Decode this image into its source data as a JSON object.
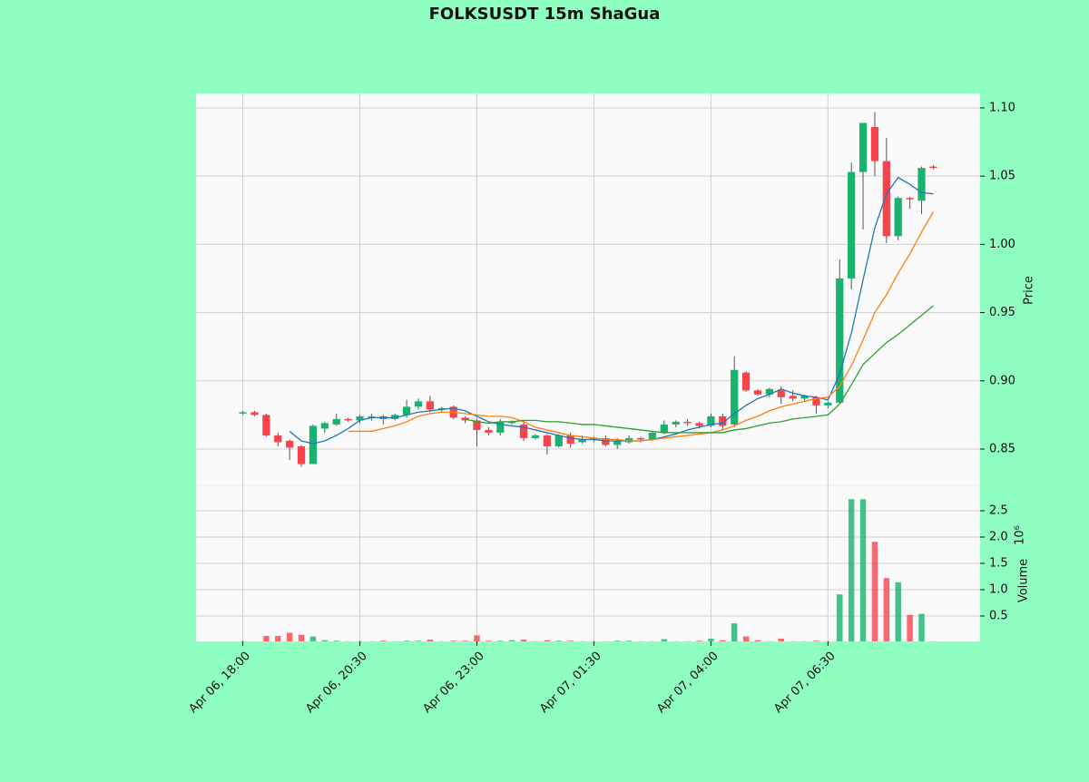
{
  "chart_data": {
    "type": "candlestick",
    "title": "FOLKSUSDT 15m ShaGua",
    "ylabel": "Price",
    "y2label": "Volume",
    "y2_offset_label": "10⁶",
    "categories": [
      "Apr 06, 18:00",
      null,
      null,
      null,
      null,
      null,
      null,
      null,
      null,
      null,
      "Apr 06, 20:30",
      null,
      null,
      null,
      null,
      null,
      null,
      null,
      null,
      null,
      "Apr 06, 23:00",
      null,
      null,
      null,
      null,
      null,
      null,
      null,
      null,
      null,
      "Apr 07, 01:30",
      null,
      null,
      null,
      null,
      null,
      null,
      null,
      null,
      null,
      "Apr 07, 04:00",
      null,
      null,
      null,
      null,
      null,
      null,
      null,
      null,
      null,
      "Apr 07, 06:30",
      null,
      null,
      null,
      null,
      null,
      null,
      null,
      null,
      null
    ],
    "open": [
      0.876,
      0.877,
      0.875,
      0.86,
      0.856,
      0.852,
      0.839,
      0.865,
      0.868,
      0.872,
      0.871,
      0.873,
      0.874,
      0.872,
      0.875,
      0.881,
      0.885,
      0.879,
      0.881,
      0.873,
      0.871,
      0.864,
      0.862,
      0.869,
      0.868,
      0.858,
      0.86,
      0.852,
      0.86,
      0.855,
      0.857,
      0.858,
      0.853,
      0.855,
      0.858,
      0.857,
      0.862,
      0.868,
      0.87,
      0.869,
      0.867,
      0.874,
      0.868,
      0.906,
      0.893,
      0.89,
      0.893,
      0.889,
      0.887,
      0.888,
      0.882,
      0.884,
      0.975,
      1.053,
      1.086,
      1.061,
      1.006,
      1.034,
      1.032,
      1.057
    ],
    "high": [
      0.878,
      0.878,
      0.876,
      0.862,
      0.857,
      0.853,
      0.868,
      0.87,
      0.876,
      0.873,
      0.875,
      0.876,
      0.875,
      0.876,
      0.886,
      0.887,
      0.889,
      0.881,
      0.882,
      0.874,
      0.872,
      0.866,
      0.872,
      0.871,
      0.871,
      0.861,
      0.861,
      0.861,
      0.862,
      0.86,
      0.859,
      0.86,
      0.858,
      0.86,
      0.859,
      0.863,
      0.871,
      0.871,
      0.872,
      0.87,
      0.876,
      0.876,
      0.918,
      0.907,
      0.894,
      0.895,
      0.896,
      0.893,
      0.89,
      0.889,
      0.885,
      0.989,
      1.06,
      1.089,
      1.097,
      1.078,
      1.035,
      1.035,
      1.057,
      1.058
    ],
    "low": [
      0.875,
      0.874,
      0.859,
      0.852,
      0.842,
      0.837,
      0.839,
      0.862,
      0.867,
      0.87,
      0.869,
      0.871,
      0.868,
      0.871,
      0.873,
      0.879,
      0.877,
      0.877,
      0.872,
      0.869,
      0.852,
      0.86,
      0.86,
      0.868,
      0.856,
      0.857,
      0.846,
      0.851,
      0.851,
      0.854,
      0.855,
      0.852,
      0.85,
      0.854,
      0.855,
      0.856,
      0.861,
      0.866,
      0.867,
      0.865,
      0.866,
      0.864,
      0.866,
      0.892,
      0.889,
      0.888,
      0.883,
      0.885,
      0.885,
      0.876,
      0.88,
      0.883,
      0.967,
      1.011,
      1.05,
      1.001,
      1.003,
      1.026,
      1.022,
      1.055
    ],
    "close": [
      0.877,
      0.875,
      0.86,
      0.855,
      0.851,
      0.839,
      0.867,
      0.869,
      0.872,
      0.871,
      0.874,
      0.874,
      0.872,
      0.875,
      0.881,
      0.885,
      0.879,
      0.88,
      0.873,
      0.871,
      0.864,
      0.862,
      0.87,
      0.87,
      0.858,
      0.86,
      0.852,
      0.86,
      0.854,
      0.857,
      0.858,
      0.853,
      0.856,
      0.858,
      0.857,
      0.862,
      0.868,
      0.87,
      0.869,
      0.867,
      0.874,
      0.867,
      0.908,
      0.893,
      0.89,
      0.894,
      0.888,
      0.887,
      0.889,
      0.882,
      0.884,
      0.975,
      1.053,
      1.089,
      1.061,
      1.006,
      1.034,
      1.033,
      1.056,
      1.056
    ],
    "volume": [
      0.02,
      0.01,
      0.12,
      0.12,
      0.18,
      0.14,
      0.11,
      0.04,
      0.03,
      0.02,
      0.02,
      0.02,
      0.03,
      0.02,
      0.03,
      0.03,
      0.05,
      0.02,
      0.03,
      0.03,
      0.13,
      0.03,
      0.03,
      0.04,
      0.05,
      0.02,
      0.04,
      0.03,
      0.03,
      0.02,
      0.02,
      0.02,
      0.03,
      0.03,
      0.02,
      0.02,
      0.06,
      0.02,
      0.02,
      0.03,
      0.07,
      0.04,
      0.36,
      0.11,
      0.04,
      0.02,
      0.07,
      0.02,
      0.02,
      0.03,
      0.02,
      0.91,
      2.72,
      2.72,
      1.91,
      1.22,
      1.14,
      0.52,
      0.54,
      0.02
    ],
    "up_color": "#18b46f",
    "down_color": "#f7434b",
    "series": [
      {
        "color": "#1f77b4",
        "values": [
          null,
          null,
          null,
          null,
          0.863,
          0.856,
          0.854,
          0.856,
          0.86,
          0.865,
          0.871,
          0.873,
          0.873,
          0.873,
          0.875,
          0.877,
          0.878,
          0.879,
          0.88,
          0.878,
          0.874,
          0.87,
          0.868,
          0.867,
          0.866,
          0.864,
          0.862,
          0.86,
          0.858,
          0.857,
          0.857,
          0.856,
          0.856,
          0.856,
          0.856,
          0.857,
          0.859,
          0.861,
          0.864,
          0.866,
          0.868,
          0.869,
          0.876,
          0.882,
          0.887,
          0.89,
          0.894,
          0.891,
          0.889,
          0.888,
          0.886,
          0.905,
          0.935,
          0.974,
          1.012,
          1.037,
          1.049,
          1.044,
          1.038,
          1.037
        ]
      },
      {
        "color": "#ff7f0e",
        "values": [
          null,
          null,
          null,
          null,
          null,
          null,
          null,
          null,
          null,
          0.863,
          0.863,
          0.863,
          0.865,
          0.867,
          0.87,
          0.874,
          0.876,
          0.877,
          0.877,
          0.876,
          0.875,
          0.874,
          0.874,
          0.873,
          0.87,
          0.866,
          0.864,
          0.862,
          0.86,
          0.859,
          0.858,
          0.857,
          0.857,
          0.856,
          0.856,
          0.857,
          0.858,
          0.859,
          0.86,
          0.861,
          0.862,
          0.864,
          0.867,
          0.871,
          0.874,
          0.878,
          0.881,
          0.883,
          0.885,
          0.887,
          0.888,
          0.896,
          0.911,
          0.93,
          0.95,
          0.963,
          0.979,
          0.993,
          1.009,
          1.024
        ]
      },
      {
        "color": "#2ca02c",
        "values": [
          null,
          null,
          null,
          null,
          null,
          null,
          null,
          null,
          null,
          null,
          null,
          null,
          null,
          null,
          null,
          null,
          null,
          null,
          null,
          0.872,
          0.87,
          0.869,
          0.87,
          0.87,
          0.871,
          0.871,
          0.87,
          0.87,
          0.869,
          0.868,
          0.868,
          0.867,
          0.866,
          0.865,
          0.864,
          0.863,
          0.862,
          0.862,
          0.862,
          0.862,
          0.862,
          0.862,
          0.864,
          0.865,
          0.867,
          0.869,
          0.87,
          0.872,
          0.873,
          0.874,
          0.875,
          0.883,
          0.897,
          0.912,
          0.92,
          0.928,
          0.934,
          0.941,
          0.948,
          0.955
        ]
      }
    ],
    "xlim": [
      -4,
      63
    ],
    "ylim": [
      0.8234,
      1.1106
    ],
    "yticks": [
      0.85,
      {
        "value": 0.9,
        "label": "0.90"
      },
      0.95,
      {
        "value": 1,
        "label": "1.00"
      },
      1.05,
      {
        "value": 1.1,
        "label": "1.10"
      }
    ],
    "y2lim": [
      0.017,
      2.983
    ],
    "y2ticks": [
      0.5,
      {
        "value": 1,
        "label": "1.0"
      },
      1.5,
      {
        "value": 2,
        "label": "2.0"
      },
      2.5
    ],
    "grid": true
  }
}
